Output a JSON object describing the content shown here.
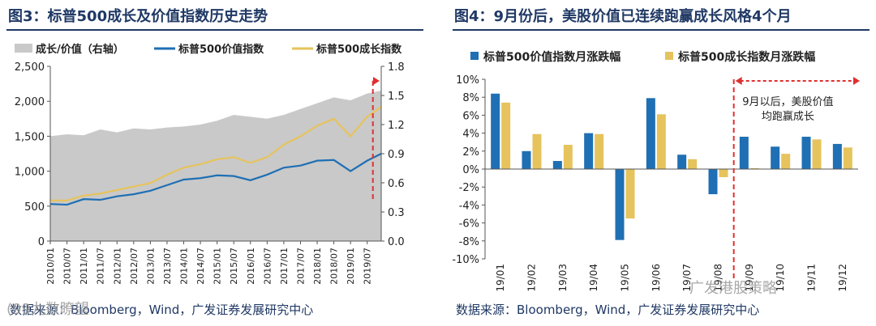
{
  "chart_data": [
    {
      "type": "line",
      "title": "图3：标普500成长及价值指数历史走势",
      "source": "数据来源：Bloomberg，Wind，广发证券发展研究中心",
      "legend": [
        "成长/价值（右轴）",
        "标普500价值指数",
        "标普500成长指数"
      ],
      "x_ticks": [
        "2010/01",
        "2010/07",
        "2011/01",
        "2011/07",
        "2012/01",
        "2012/07",
        "2013/01",
        "2013/07",
        "2014/01",
        "2014/07",
        "2015/01",
        "2015/07",
        "2016/01",
        "2016/07",
        "2017/01",
        "2017/07",
        "2018/01",
        "2018/07",
        "2019/01",
        "2019/07"
      ],
      "y_left_ticks": [
        "0",
        "500",
        "1,000",
        "1,500",
        "2,000",
        "2,500"
      ],
      "y_right_ticks": [
        "0.0",
        "0.3",
        "0.6",
        "0.9",
        "1.2",
        "1.5",
        "1.8"
      ],
      "ylim_left": [
        0,
        2500
      ],
      "ylim_right": [
        0,
        1.8
      ],
      "x_range": [
        2010.0,
        2019.92
      ],
      "series": [
        {
          "name": "成长/价值（右轴）",
          "axis": "right",
          "color": "#c9c9c9",
          "x": [
            2010.0,
            2010.5,
            2011.0,
            2011.5,
            2012.0,
            2012.5,
            2013.0,
            2013.5,
            2014.0,
            2014.5,
            2015.0,
            2015.5,
            2016.0,
            2016.5,
            2017.0,
            2017.5,
            2018.0,
            2018.5,
            2019.0,
            2019.5,
            2019.92
          ],
          "values": [
            1.08,
            1.1,
            1.09,
            1.15,
            1.12,
            1.16,
            1.15,
            1.17,
            1.18,
            1.2,
            1.24,
            1.3,
            1.28,
            1.26,
            1.3,
            1.36,
            1.42,
            1.48,
            1.45,
            1.52,
            1.55
          ]
        },
        {
          "name": "标普500价值指数",
          "axis": "left",
          "color": "#1f6fb4",
          "x": [
            2010.0,
            2010.5,
            2011.0,
            2011.5,
            2012.0,
            2012.5,
            2013.0,
            2013.5,
            2014.0,
            2014.5,
            2015.0,
            2015.5,
            2016.0,
            2016.5,
            2017.0,
            2017.5,
            2018.0,
            2018.5,
            2019.0,
            2019.5,
            2019.92
          ],
          "values": [
            530,
            520,
            600,
            590,
            640,
            670,
            720,
            800,
            880,
            900,
            940,
            930,
            870,
            950,
            1050,
            1080,
            1150,
            1160,
            1000,
            1150,
            1250
          ]
        },
        {
          "name": "标普500成长指数",
          "axis": "left",
          "color": "#e6c35c",
          "x": [
            2010.0,
            2010.5,
            2011.0,
            2011.5,
            2012.0,
            2012.5,
            2013.0,
            2013.5,
            2014.0,
            2014.5,
            2015.0,
            2015.5,
            2016.0,
            2016.5,
            2017.0,
            2017.5,
            2018.0,
            2018.5,
            2019.0,
            2019.5,
            2019.92
          ],
          "values": [
            580,
            580,
            650,
            680,
            730,
            780,
            830,
            950,
            1050,
            1100,
            1170,
            1200,
            1120,
            1200,
            1380,
            1500,
            1650,
            1750,
            1500,
            1780,
            1920
          ]
        }
      ]
    },
    {
      "type": "bar",
      "title": "图4：9月份后，美股价值已连续跑赢成长风格4个月",
      "source": "数据来源：Bloomberg，Wind，广发证券发展研究中心",
      "annotation": [
        "9月以后，美股价值",
        "均跑赢成长"
      ],
      "categories": [
        "19/01",
        "19/02",
        "19/03",
        "19/04",
        "19/05",
        "19/06",
        "19/07",
        "19/08",
        "19/09",
        "19/10",
        "19/11",
        "19/12"
      ],
      "y_ticks": [
        "10%",
        "8%",
        "6%",
        "4%",
        "2%",
        "0%",
        "-2%",
        "-4%",
        "-6%",
        "-8%",
        "-10%"
      ],
      "ylim": [
        -10,
        10
      ],
      "series": [
        {
          "name": "标普500价值指数月涨跌幅",
          "color": "#1f6fb4",
          "values": [
            8.4,
            2.0,
            0.9,
            4.0,
            -7.9,
            7.9,
            1.6,
            -2.8,
            3.6,
            2.5,
            3.6,
            2.8
          ]
        },
        {
          "name": "标普500成长指数月涨跌幅",
          "color": "#e6c35c",
          "values": [
            7.4,
            3.9,
            2.7,
            3.9,
            -5.5,
            6.1,
            1.1,
            -0.9,
            0.1,
            1.7,
            3.3,
            2.4
          ]
        }
      ]
    }
  ],
  "watermarks": {
    "left": "(99九数瞭望",
    "right": "广发港股策略"
  }
}
